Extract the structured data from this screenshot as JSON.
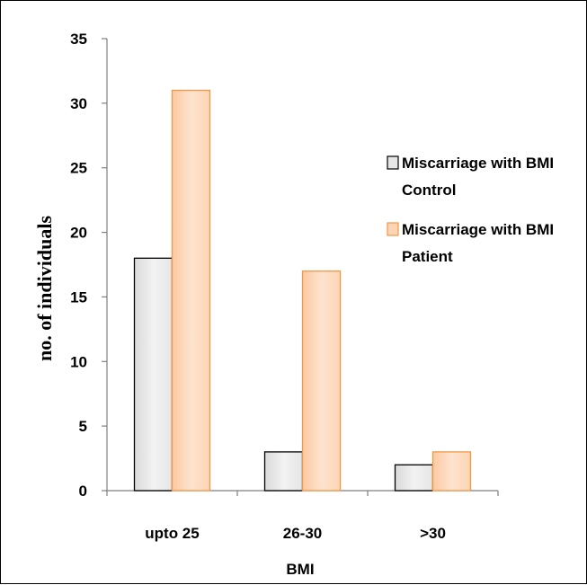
{
  "chart_data": {
    "type": "bar",
    "title": "",
    "xlabel": "BMI",
    "ylabel": "no. of individuals",
    "categories": [
      "upto 25",
      "26-30",
      ">30"
    ],
    "ylim": [
      0,
      35
    ],
    "yticks": [
      0,
      5,
      10,
      15,
      20,
      25,
      30,
      35
    ],
    "grid": false,
    "legend_position": "right",
    "series": [
      {
        "name": "Miscarriage  with BMI Control",
        "legend_lines": [
          "Miscarriage  with BMI",
          "Control"
        ],
        "values": [
          18,
          3,
          2
        ],
        "color": "#e6e6e6",
        "stroke": "#000000"
      },
      {
        "name": "Miscarriage  with BMI Patient",
        "legend_lines": [
          "Miscarriage  with BMI",
          "Patient"
        ],
        "values": [
          31,
          17,
          3
        ],
        "color": "#fdd5b5",
        "stroke": "#f79646"
      }
    ]
  }
}
